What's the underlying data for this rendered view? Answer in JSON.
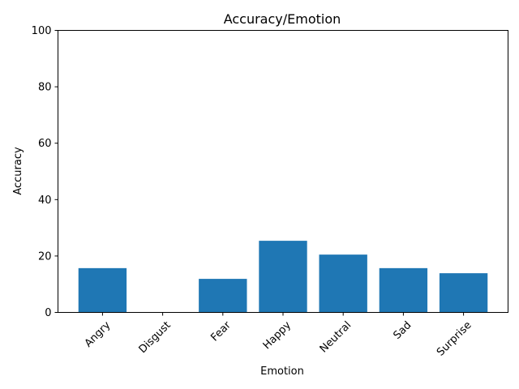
{
  "chart_data": {
    "type": "bar",
    "title": "Accuracy/Emotion",
    "xlabel": "Emotion",
    "ylabel": "Accuracy",
    "categories": [
      "Angry",
      "Disgust",
      "Fear",
      "Happy",
      "Neutral",
      "Sad",
      "Surprise"
    ],
    "values": [
      15.7,
      0,
      11.9,
      25.4,
      20.5,
      15.7,
      13.9
    ],
    "ylim": [
      0,
      100
    ],
    "yticks": [
      0,
      20,
      40,
      60,
      80,
      100
    ],
    "grid": false,
    "legend": false,
    "bar_color": "#1f77b4",
    "xtick_rotation_deg": 45
  }
}
